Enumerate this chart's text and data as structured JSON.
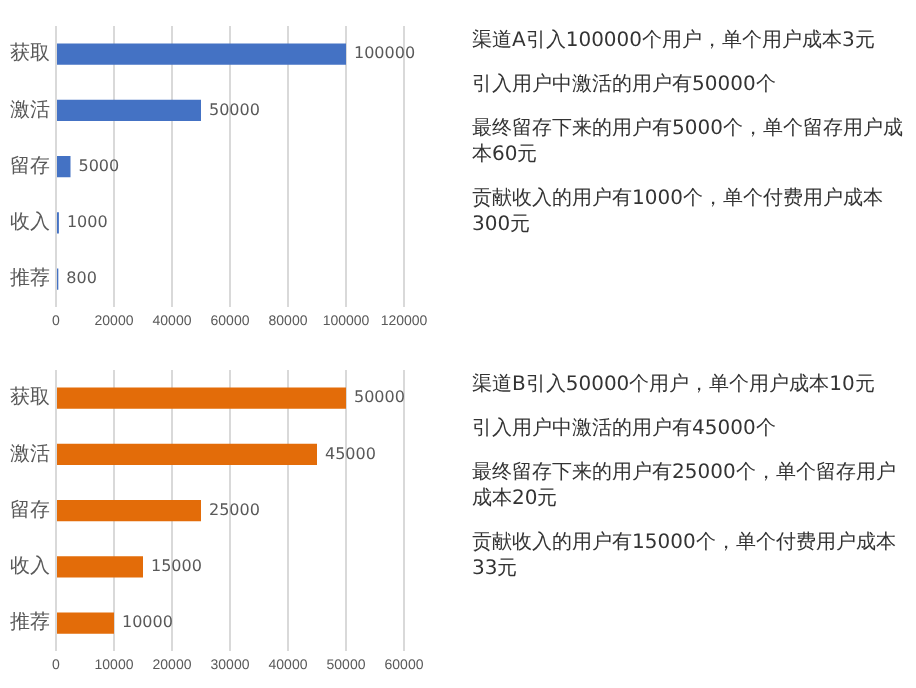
{
  "chart_data": [
    {
      "type": "bar",
      "orientation": "horizontal",
      "categories": [
        "获取",
        "激活",
        "留存",
        "收入",
        "推荐"
      ],
      "values": [
        100000,
        50000,
        5000,
        1000,
        800
      ],
      "color": "#4472c4",
      "xlim": [
        0,
        120000
      ],
      "xticks": [
        0,
        20000,
        40000,
        60000,
        80000,
        100000,
        120000
      ],
      "grid": "x",
      "data_labels": true,
      "annotations": [
        "渠道A引入100000个用户，单个用户成本3元",
        "引入用户中激活的用户有50000个",
        "最终留存下来的用户有5000个，单个留存用户成本60元",
        "贡献收入的用户有1000个，单个付费用户成本300元"
      ]
    },
    {
      "type": "bar",
      "orientation": "horizontal",
      "categories": [
        "获取",
        "激活",
        "留存",
        "收入",
        "推荐"
      ],
      "values": [
        50000,
        45000,
        25000,
        15000,
        10000
      ],
      "color": "#e36c09",
      "xlim": [
        0,
        60000
      ],
      "xticks": [
        0,
        10000,
        20000,
        30000,
        40000,
        50000,
        60000
      ],
      "grid": "x",
      "data_labels": true,
      "annotations": [
        "渠道B引入50000个用户，单个用户成本10元",
        "引入用户中激活的用户有45000个",
        "最终留存下来的用户有25000个，单个留存用户成本20元",
        "贡献收入的用户有15000个，单个付费用户成本33元"
      ]
    }
  ]
}
